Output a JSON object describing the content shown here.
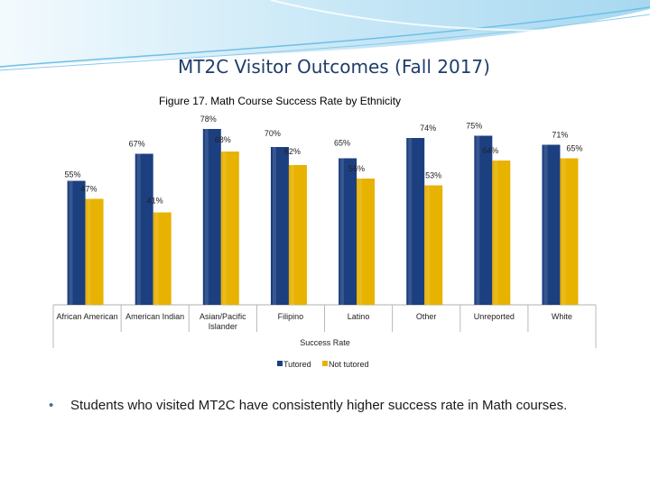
{
  "slide": {
    "title": "MT2C Visitor Outcomes (Fall 2017)",
    "bullet": "Students who visited MT2C have consistently higher success rate in Math courses."
  },
  "colors": {
    "tutored": "#1c3f80",
    "not_tutored": "#e8b200",
    "title": "#1f3d6b",
    "accent_wave": "#7fc6e8"
  },
  "chart_data": {
    "type": "bar",
    "title": "Figure 17. Math Course Success Rate by Ethnicity",
    "xlabel": "Success Rate",
    "ylabel": "",
    "ylim": [
      0,
      100
    ],
    "grid": false,
    "legend_position": "bottom",
    "categories": [
      "African American",
      "American Indian",
      "Asian/Pacific Islander",
      "Filipino",
      "Latino",
      "Other",
      "Unreported",
      "White"
    ],
    "category_lines": [
      [
        "African American"
      ],
      [
        "American Indian"
      ],
      [
        "Asian/Pacific",
        "Islander"
      ],
      [
        "Filipino"
      ],
      [
        "Latino"
      ],
      [
        "Other"
      ],
      [
        "Unreported"
      ],
      [
        "White"
      ]
    ],
    "series": [
      {
        "name": "Tutored",
        "values": [
          55,
          67,
          78,
          70,
          65,
          74,
          75,
          71
        ],
        "labels": [
          "55%",
          "67%",
          "78%",
          "70%",
          "65%",
          "74%",
          "75%",
          "71%"
        ]
      },
      {
        "name": "Not tutored",
        "values": [
          47,
          41,
          68,
          62,
          56,
          53,
          64,
          65
        ],
        "labels": [
          "47%",
          "41%",
          "68%",
          "62%",
          "56%",
          "53%",
          "64%",
          "65%"
        ]
      }
    ]
  }
}
